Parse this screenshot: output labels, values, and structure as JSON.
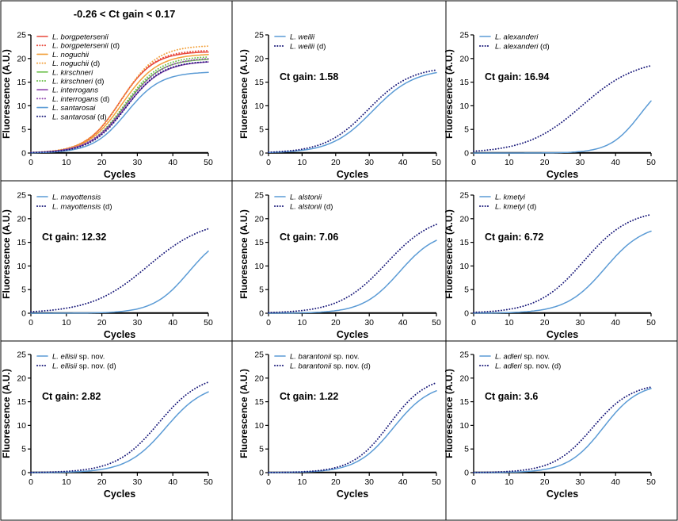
{
  "figure": {
    "cells": [
      "panel-1",
      "panel-2",
      "panel-3",
      "panel-4",
      "panel-5",
      "panel-6",
      "panel-7",
      "panel-8",
      "panel-9"
    ]
  },
  "chart_data": [
    {
      "type": "line",
      "title": "-0.26 < Ct gain < 0.17",
      "xlabel": "Cycles",
      "ylabel": "Fluorescence (A.U.)",
      "xlim": [
        0,
        50
      ],
      "ylim": [
        0,
        25
      ],
      "xticks": [
        0,
        10,
        20,
        30,
        40,
        50
      ],
      "yticks": [
        0,
        5,
        10,
        15,
        20,
        25
      ],
      "series": [
        {
          "name": "L. borgpetersenii",
          "suffix": "",
          "color": "#e8483b",
          "dash": false,
          "ct": 25.0,
          "plateau": 21.5,
          "width": 4.8
        },
        {
          "name": "L. borgpetersenii",
          "suffix": " (d)",
          "color": "#e8483b",
          "dash": true,
          "ct": 25.2,
          "plateau": 21.8,
          "width": 4.8
        },
        {
          "name": "L. noguchii",
          "suffix": "",
          "color": "#f2a03a",
          "dash": false,
          "ct": 25.8,
          "plateau": 21.0,
          "width": 5.0
        },
        {
          "name": "L. noguchii",
          "suffix": " (d)",
          "color": "#f2a03a",
          "dash": true,
          "ct": 25.6,
          "plateau": 22.8,
          "width": 5.0
        },
        {
          "name": "L. kirschneri",
          "suffix": "",
          "color": "#6cc04a",
          "dash": false,
          "ct": 26.5,
          "plateau": 20.0,
          "width": 5.0
        },
        {
          "name": "L. kirschneri",
          "suffix": " (d)",
          "color": "#6cc04a",
          "dash": true,
          "ct": 26.4,
          "plateau": 20.5,
          "width": 5.0
        },
        {
          "name": "L. interrogans",
          "suffix": "",
          "color": "#8e44ad",
          "dash": false,
          "ct": 26.8,
          "plateau": 19.5,
          "width": 5.2
        },
        {
          "name": "L. interrogans",
          "suffix": " (d)",
          "color": "#8e44ad",
          "dash": true,
          "ct": 26.7,
          "plateau": 20.2,
          "width": 5.2
        },
        {
          "name": "L. santarosai",
          "suffix": "",
          "color": "#5b9bd5",
          "dash": false,
          "ct": 27.0,
          "plateau": 17.2,
          "width": 4.8
        },
        {
          "name": "L. santarosai",
          "suffix": " (d)",
          "color": "#1a1a7a",
          "dash": true,
          "ct": 26.9,
          "plateau": 19.5,
          "width": 5.0
        }
      ]
    },
    {
      "type": "line",
      "gain_label": "Ct gain: 1.58",
      "xlabel": "Cycles",
      "ylabel": "Fluorescence (A.U.)",
      "xlim": [
        0,
        50
      ],
      "ylim": [
        0,
        25
      ],
      "xticks": [
        0,
        10,
        20,
        30,
        40,
        50
      ],
      "yticks": [
        0,
        5,
        10,
        15,
        20,
        25
      ],
      "series": [
        {
          "name": "L. weilii",
          "suffix": "",
          "color": "#5b9bd5",
          "dash": false,
          "ct": 31.0,
          "plateau": 17.8,
          "width": 6.2
        },
        {
          "name": "L. weilii",
          "suffix": " (d)",
          "color": "#1a1a7a",
          "dash": true,
          "ct": 29.6,
          "plateau": 18.3,
          "width": 6.4
        }
      ]
    },
    {
      "type": "line",
      "gain_label": "Ct gain: 16.94",
      "xlabel": "Cycles",
      "ylabel": "Fluorescence (A.U.)",
      "xlim": [
        0,
        50
      ],
      "ylim": [
        0,
        25
      ],
      "xticks": [
        0,
        10,
        20,
        30,
        40,
        50
      ],
      "yticks": [
        0,
        5,
        10,
        15,
        20,
        25
      ],
      "series": [
        {
          "name": "L. alexanderi",
          "suffix": "",
          "color": "#5b9bd5",
          "dash": false,
          "ct": 47.0,
          "plateau": 16.5,
          "width": 4.3
        },
        {
          "name": "L. alexanderi",
          "suffix": " (d)",
          "color": "#1a1a7a",
          "dash": true,
          "ct": 30.5,
          "plateau": 20.0,
          "width": 7.8
        }
      ]
    },
    {
      "type": "line",
      "gain_label": "Ct gain: 12.32",
      "xlabel": "Cycles",
      "ylabel": "Fluorescence (A.U.)",
      "xlim": [
        0,
        50
      ],
      "ylim": [
        0,
        25
      ],
      "xticks": [
        0,
        10,
        20,
        30,
        40,
        50
      ],
      "yticks": [
        0,
        5,
        10,
        15,
        20,
        25
      ],
      "series": [
        {
          "name": "L. mayottensis",
          "suffix": "",
          "color": "#5b9bd5",
          "dash": false,
          "ct": 44.5,
          "plateau": 17.5,
          "width": 5.0
        },
        {
          "name": "L. mayottensis",
          "suffix": " (d)",
          "color": "#1a1a7a",
          "dash": true,
          "ct": 33.0,
          "plateau": 20.0,
          "width": 8.0
        }
      ]
    },
    {
      "type": "line",
      "gain_label": "Ct gain: 7.06",
      "xlabel": "Cycles",
      "ylabel": "Fluorescence (A.U.)",
      "xlim": [
        0,
        50
      ],
      "ylim": [
        0,
        25
      ],
      "xticks": [
        0,
        10,
        20,
        30,
        40,
        50
      ],
      "yticks": [
        0,
        5,
        10,
        15,
        20,
        25
      ],
      "series": [
        {
          "name": "L. alstonii",
          "suffix": "",
          "color": "#5b9bd5",
          "dash": false,
          "ct": 39.0,
          "plateau": 17.5,
          "width": 5.5
        },
        {
          "name": "L. alstonii",
          "suffix": " (d)",
          "color": "#1a1a7a",
          "dash": true,
          "ct": 35.0,
          "plateau": 21.0,
          "width": 7.0
        }
      ]
    },
    {
      "type": "line",
      "gain_label": "Ct gain: 6.72",
      "xlabel": "Cycles",
      "ylabel": "Fluorescence (A.U.)",
      "xlim": [
        0,
        50
      ],
      "ylim": [
        0,
        25
      ],
      "xticks": [
        0,
        10,
        20,
        30,
        40,
        50
      ],
      "yticks": [
        0,
        5,
        10,
        15,
        20,
        25
      ],
      "series": [
        {
          "name": "L. kmetyi",
          "suffix": "",
          "color": "#5b9bd5",
          "dash": false,
          "ct": 37.0,
          "plateau": 19.0,
          "width": 5.5
        },
        {
          "name": "L. kmetyi",
          "suffix": " (d)",
          "color": "#1a1a7a",
          "dash": true,
          "ct": 31.0,
          "plateau": 22.0,
          "width": 6.5
        }
      ]
    },
    {
      "type": "line",
      "gain_label": "Ct gain: 2.82",
      "xlabel": "Cycles",
      "ylabel": "Fluorescence (A.U.)",
      "xlim": [
        0,
        50
      ],
      "ylim": [
        0,
        25
      ],
      "xticks": [
        0,
        10,
        20,
        30,
        40,
        50
      ],
      "yticks": [
        0,
        5,
        10,
        15,
        20,
        25
      ],
      "series": [
        {
          "name": "L. ellisii",
          "suffix": " sp. nov.",
          "color": "#5b9bd5",
          "dash": false,
          "ct": 38.0,
          "plateau": 19.0,
          "width": 5.5
        },
        {
          "name": "L. ellisii",
          "suffix": " sp. nov. (d)",
          "color": "#1a1a7a",
          "dash": true,
          "ct": 36.0,
          "plateau": 21.0,
          "width": 6.0
        }
      ]
    },
    {
      "type": "line",
      "gain_label": "Ct gain: 1.22",
      "xlabel": "Cycles",
      "ylabel": "Fluorescence (A.U.)",
      "xlim": [
        0,
        50
      ],
      "ylim": [
        0,
        25
      ],
      "xticks": [
        0,
        10,
        20,
        30,
        40,
        50
      ],
      "yticks": [
        0,
        5,
        10,
        15,
        20,
        25
      ],
      "series": [
        {
          "name": "L. barantonii",
          "suffix": " sp. nov.",
          "color": "#5b9bd5",
          "dash": false,
          "ct": 37.2,
          "plateau": 19.0,
          "width": 5.5
        },
        {
          "name": "L. barantonii",
          "suffix": " sp. nov. (d)",
          "color": "#1a1a7a",
          "dash": true,
          "ct": 36.0,
          "plateau": 20.5,
          "width": 5.5
        }
      ]
    },
    {
      "type": "line",
      "gain_label": "Ct gain: 3.6",
      "xlabel": "Cycles",
      "ylabel": "Fluorescence (A.U.)",
      "xlim": [
        0,
        50
      ],
      "ylim": [
        0,
        25
      ],
      "xticks": [
        0,
        10,
        20,
        30,
        40,
        50
      ],
      "yticks": [
        0,
        5,
        10,
        15,
        20,
        25
      ],
      "series": [
        {
          "name": "L. adleri",
          "suffix": " sp. nov.",
          "color": "#5b9bd5",
          "dash": false,
          "ct": 36.5,
          "plateau": 19.0,
          "width": 5.0
        },
        {
          "name": "L. adleri",
          "suffix": " sp. nov. (d)",
          "color": "#1a1a7a",
          "dash": true,
          "ct": 33.5,
          "plateau": 19.0,
          "width": 5.5
        }
      ]
    }
  ]
}
